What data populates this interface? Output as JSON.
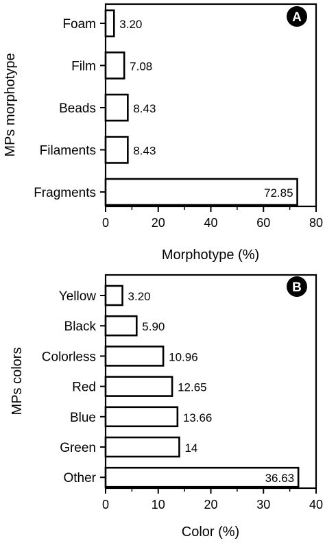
{
  "chart_data": [
    {
      "type": "bar",
      "orientation": "horizontal",
      "panel_label": "A",
      "categories": [
        "Foam",
        "Film",
        "Beads",
        "Filaments",
        "Fragments"
      ],
      "values": [
        3.2,
        7.08,
        8.43,
        8.43,
        72.85
      ],
      "value_labels": [
        "3.20",
        "7.08",
        "8.43",
        "8.43",
        "72.85"
      ],
      "xlabel": "Morphotype (%)",
      "ylabel": "MPs morphotype",
      "xlim": [
        0,
        80
      ],
      "xticks": [
        "0",
        "20",
        "40",
        "60",
        "80"
      ],
      "grid": false,
      "bar_fill": "#ffffff",
      "bar_stroke": "#000000"
    },
    {
      "type": "bar",
      "orientation": "horizontal",
      "panel_label": "B",
      "categories": [
        "Yellow",
        "Black",
        "Colorless",
        "Red",
        "Blue",
        "Green",
        "Other"
      ],
      "values": [
        3.2,
        5.9,
        10.96,
        12.65,
        13.66,
        14,
        36.63
      ],
      "value_labels": [
        "3.20",
        "5.90",
        "10.96",
        "12.65",
        "13.66",
        "14",
        "36.63"
      ],
      "xlabel": "Color (%)",
      "ylabel": "MPs colors",
      "xlim": [
        0,
        40
      ],
      "xticks": [
        "0",
        "10",
        "20",
        "30",
        "40"
      ],
      "grid": false,
      "bar_fill": "#ffffff",
      "bar_stroke": "#000000"
    }
  ]
}
